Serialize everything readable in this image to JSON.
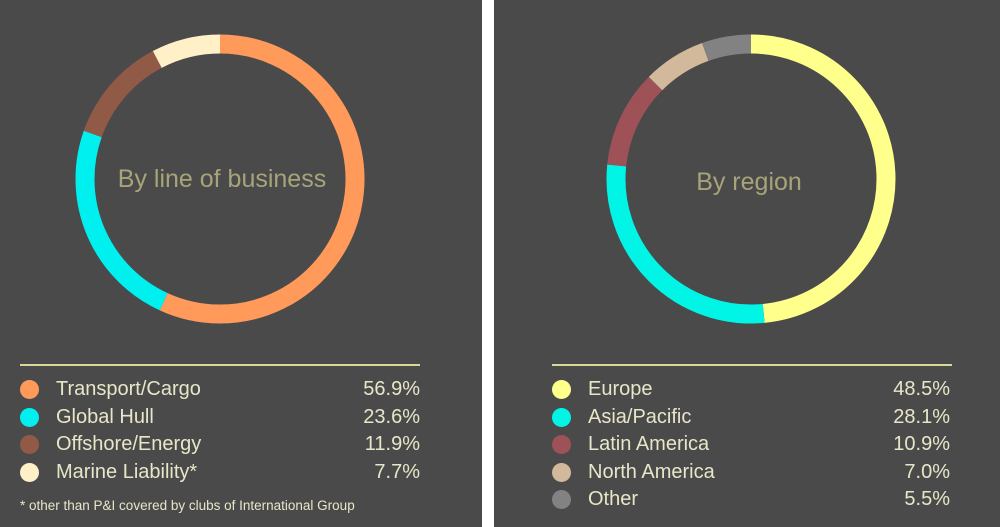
{
  "chart_data": [
    {
      "type": "pie",
      "center_label": "By line of business",
      "categories": [
        "Transport/Cargo",
        "Global Hull",
        "Offshore/Energy",
        "Marine Liability*"
      ],
      "value_labels": [
        "56.9%",
        "23.6%",
        "11.9%",
        "7.7%"
      ],
      "values": [
        56.9,
        23.6,
        11.9,
        7.7
      ],
      "colors": [
        "#ff9a5a",
        "#00f0f0",
        "#915a47",
        "#fff0c8"
      ],
      "footnote": "* other than P&I covered by clubs of International Group"
    },
    {
      "type": "pie",
      "center_label": "By region",
      "categories": [
        "Europe",
        "Asia/Pacific",
        "Latin America",
        "North America",
        "Other"
      ],
      "value_labels": [
        "48.5%",
        "28.1%",
        "10.9%",
        "7.0%",
        "5.5%"
      ],
      "values": [
        48.5,
        28.1,
        10.9,
        7.0,
        5.5
      ],
      "colors": [
        "#ffff8c",
        "#00f5e6",
        "#9e5257",
        "#d2b99b",
        "#828282"
      ]
    }
  ]
}
